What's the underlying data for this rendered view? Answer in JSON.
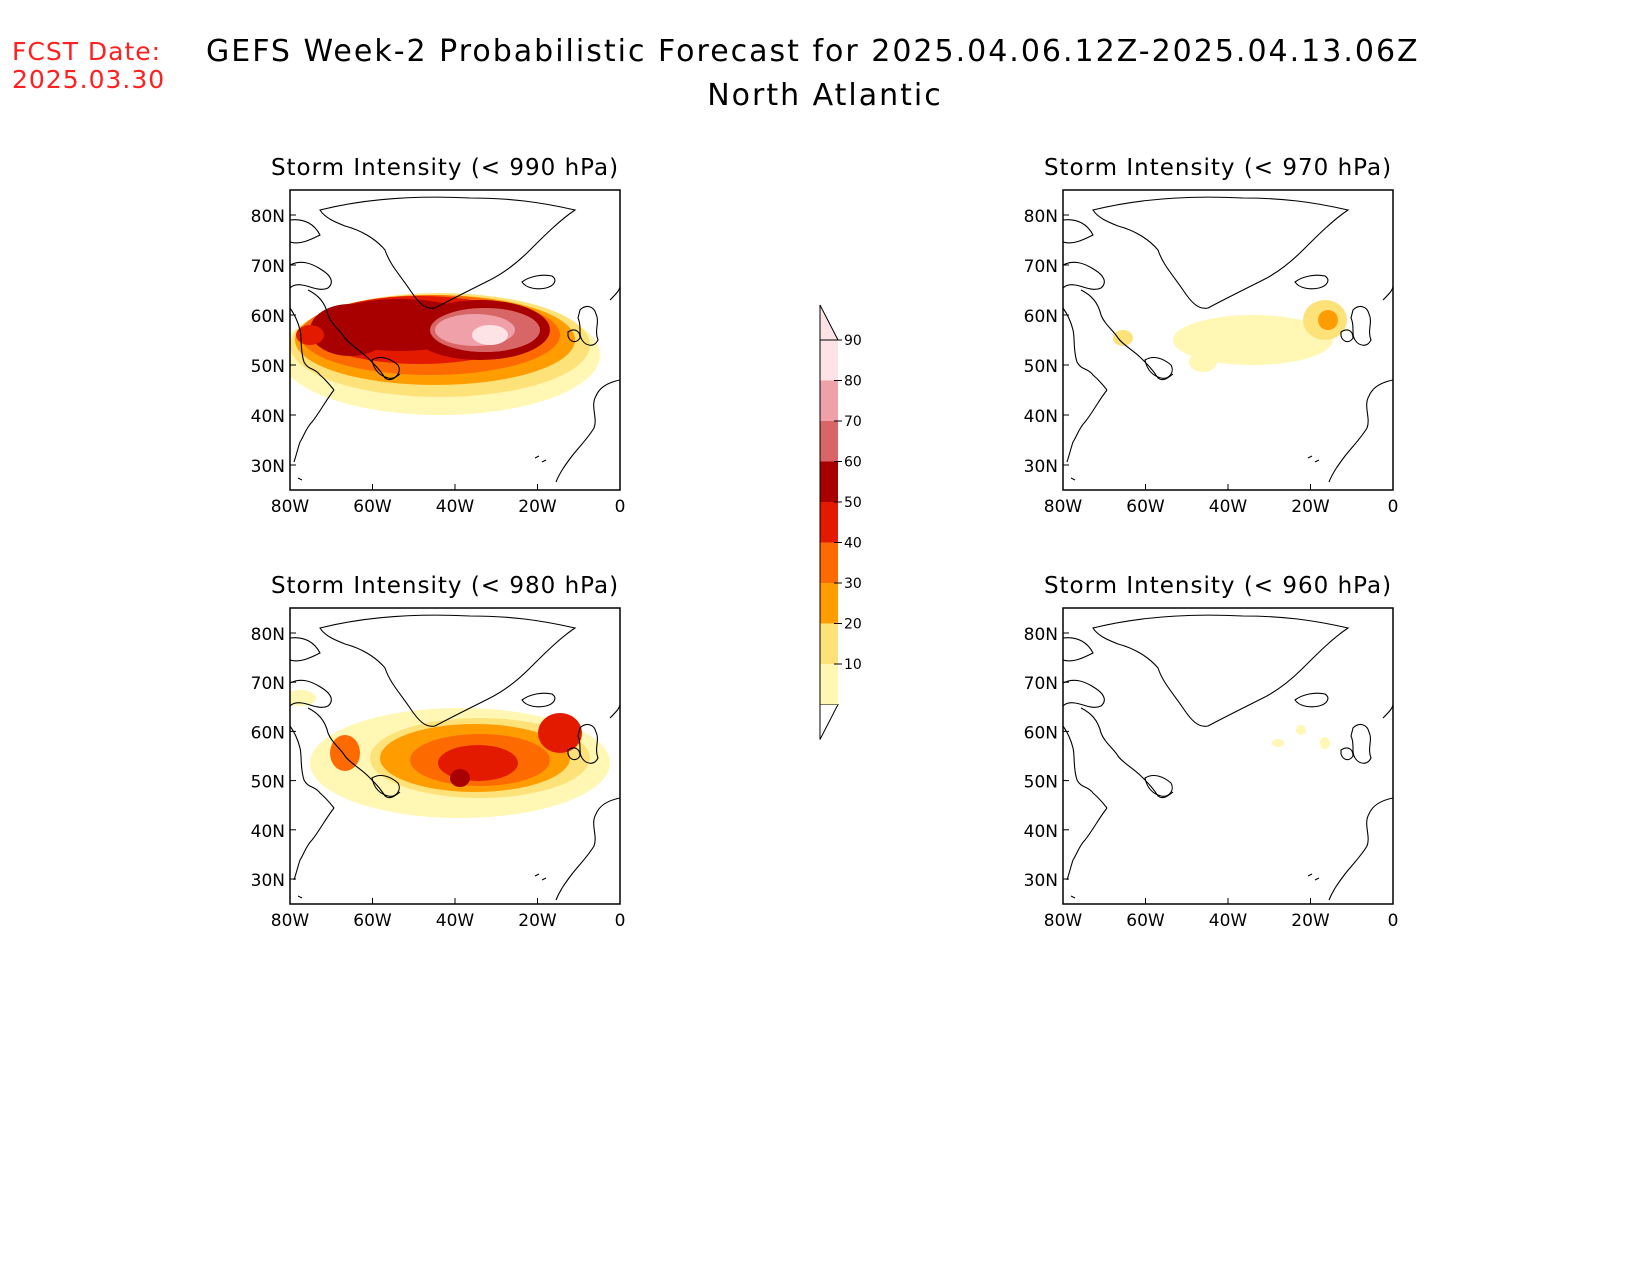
{
  "fcst_date": {
    "label": "FCST Date:",
    "value": "2025.03.30"
  },
  "title": {
    "line1": "GEFS Week-2 Probabilistic Forecast for 2025.04.06.12Z-2025.04.13.06Z",
    "line2": "North Atlantic"
  },
  "axes": {
    "lat_labels": [
      "80N",
      "70N",
      "60N",
      "50N",
      "40N",
      "30N"
    ],
    "lon_labels": [
      "80W",
      "60W",
      "40W",
      "20W",
      "0"
    ]
  },
  "panels": [
    {
      "title": "Storm Intensity (< 990 hPa)",
      "threshold": 990
    },
    {
      "title": "Storm Intensity (< 970 hPa)",
      "threshold": 970
    },
    {
      "title": "Storm Intensity (< 980 hPa)",
      "threshold": 980
    },
    {
      "title": "Storm Intensity (< 960 hPa)",
      "threshold": 960
    }
  ],
  "colorbar": {
    "levels": [
      "10",
      "20",
      "30",
      "40",
      "50",
      "60",
      "70",
      "80",
      "90"
    ],
    "colors": [
      "#fff7b3",
      "#fde27a",
      "#ff9d00",
      "#fd6a00",
      "#e31a00",
      "#a80000",
      "#d96666",
      "#f0a0a8",
      "#fde3e6",
      "#ffffff"
    ]
  },
  "colors": {
    "fcst_date": "#ff2020"
  }
}
